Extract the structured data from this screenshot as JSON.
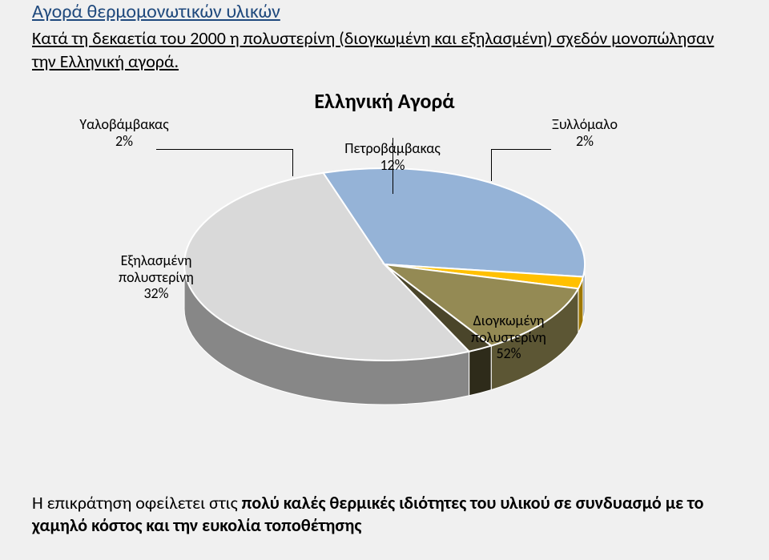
{
  "title": "Αγορά θερμομονωτικών υλικών",
  "intro": "Κατά τη δεκαετία του 2000 η πολυστερίνη (διογκωμένη και εξηλασμένη) σχεδόν μονοπώλησαν την Ελληνική αγορά.",
  "chart": {
    "type": "pie-3d",
    "title": "Ελληνική Αγορά",
    "title_fontsize": 26,
    "label_fontsize": 18,
    "background_color": "#f0f0f0",
    "slices": [
      {
        "label_line1": "Διογκωμένη",
        "label_line2": "πολυστερίνη",
        "label_line3": "52%",
        "value": 52,
        "color": "#d9d9d9"
      },
      {
        "label_line1": "Εξηλασμένη",
        "label_line2": "πολυστερίνη",
        "label_line3": "32%",
        "value": 32,
        "color": "#95b3d7"
      },
      {
        "label_line1": "Υαλοβάμβακας",
        "label_line2": "2%",
        "value": 2,
        "color": "#ffc000"
      },
      {
        "label_line1": "Πετροβάμβακας",
        "label_line2": "12%",
        "value": 12,
        "color": "#948a54"
      },
      {
        "label_line1": "Ξυλλόμαλο",
        "label_line2": "2%",
        "value": 2,
        "color": "#4a452a"
      }
    ],
    "depth_color": "#a6a6a6",
    "stroke": "#ffffff"
  },
  "footer_pre": "Η επικράτηση οφείλετει στις ",
  "footer_b1": "πολύ καλές θερμικές ιδιότητες του υλικού σε συνδυασμό με το χαμηλό κόστος και την ευκολία τοποθέτησης"
}
